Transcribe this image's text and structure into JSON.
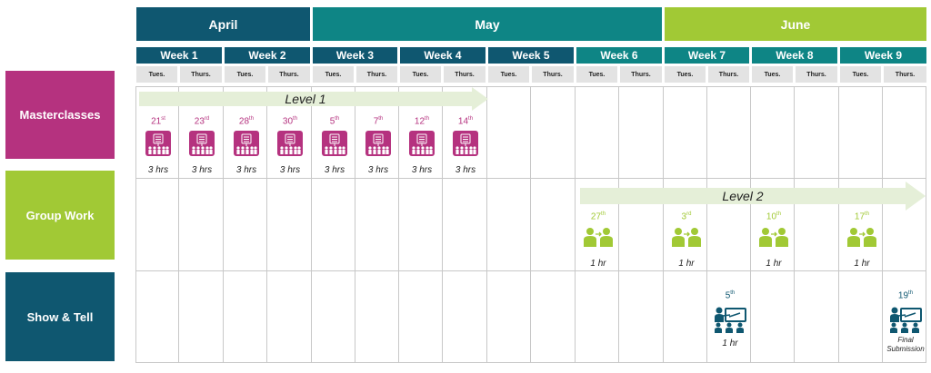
{
  "months": [
    {
      "label": "April",
      "color": "#0f5770"
    },
    {
      "label": "May",
      "color": "#0e8585"
    },
    {
      "label": "June",
      "color": "#a1c935"
    }
  ],
  "weeks": [
    "Week 1",
    "Week 2",
    "Week 3",
    "Week 4",
    "Week 5",
    "Week 6",
    "Week 7",
    "Week 8",
    "Week 9"
  ],
  "days": [
    "Tues.",
    "Thurs.",
    "Tues.",
    "Thurs.",
    "Tues.",
    "Thurs.",
    "Tues.",
    "Thurs.",
    "Tues.",
    "Thurs.",
    "Tues.",
    "Thurs.",
    "Tues.",
    "Thurs.",
    "Tues.",
    "Thurs.",
    "Tues.",
    "Thurs."
  ],
  "rows": [
    {
      "label": "Masterclasses",
      "color": "#b5327f"
    },
    {
      "label": "Group Work",
      "color": "#a1c935"
    },
    {
      "label": "Show & Tell",
      "color": "#0f5770"
    }
  ],
  "arrows": {
    "level1": "Level 1",
    "level2": "Level 2"
  },
  "masterclasses": [
    {
      "day": "21",
      "sup": "st",
      "dur": "3 hrs"
    },
    {
      "day": "23",
      "sup": "rd",
      "dur": "3 hrs"
    },
    {
      "day": "28",
      "sup": "th",
      "dur": "3 hrs"
    },
    {
      "day": "30",
      "sup": "th",
      "dur": "3 hrs"
    },
    {
      "day": "5",
      "sup": "th",
      "dur": "3 hrs"
    },
    {
      "day": "7",
      "sup": "th",
      "dur": "3 hrs"
    },
    {
      "day": "12",
      "sup": "th",
      "dur": "3 hrs"
    },
    {
      "day": "14",
      "sup": "th",
      "dur": "3 hrs"
    }
  ],
  "group_work": [
    {
      "day": "27",
      "sup": "th",
      "dur": "1 hr"
    },
    {
      "day": "3",
      "sup": "rd",
      "dur": "1 hr"
    },
    {
      "day": "10",
      "sup": "th",
      "dur": "1 hr"
    },
    {
      "day": "17",
      "sup": "th",
      "dur": "1 hr"
    }
  ],
  "show_tell": [
    {
      "day": "5",
      "sup": "th",
      "dur": "1 hr"
    },
    {
      "day": "19",
      "sup": "th",
      "dur": "Final Submission"
    }
  ]
}
